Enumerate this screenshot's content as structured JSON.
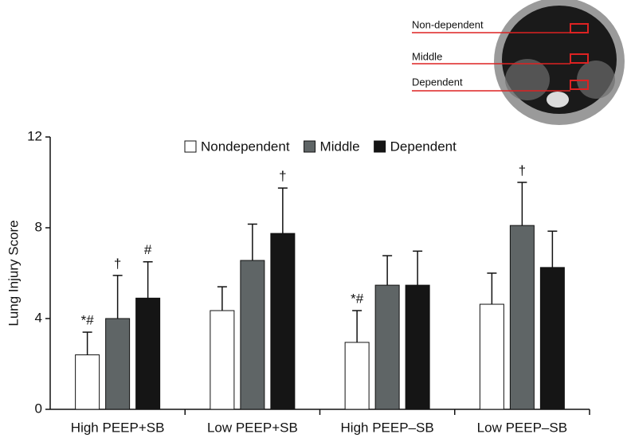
{
  "chart_data": {
    "type": "bar",
    "ylabel": "Lung Injury Score",
    "categories": [
      "High PEEP+SB",
      "Low PEEP+SB",
      "High PEEP–SB",
      "Low PEEP–SB"
    ],
    "series": [
      {
        "name": "Nondependent",
        "color": "#ffffff",
        "values": [
          2.4,
          4.35,
          2.95,
          4.63
        ],
        "errors": [
          1.0,
          1.05,
          1.4,
          1.37
        ],
        "annotations": [
          "*#",
          null,
          "*#",
          null
        ]
      },
      {
        "name": "Middle",
        "color": "#5f6566",
        "values": [
          4.0,
          6.56,
          5.47,
          8.1
        ],
        "errors": [
          1.9,
          1.6,
          1.3,
          1.9
        ],
        "annotations": [
          "†",
          null,
          null,
          "†"
        ]
      },
      {
        "name": "Dependent",
        "color": "#151515",
        "values": [
          4.9,
          7.75,
          5.47,
          6.25
        ],
        "errors": [
          1.6,
          2.0,
          1.5,
          1.6
        ],
        "annotations": [
          "#",
          "†",
          null,
          null
        ]
      }
    ],
    "ylim": [
      0,
      12
    ],
    "yticks": [
      0,
      4,
      8,
      12
    ],
    "legend": "top"
  },
  "inset": {
    "labels": [
      "Non-dependent",
      "Middle",
      "Dependent"
    ]
  }
}
